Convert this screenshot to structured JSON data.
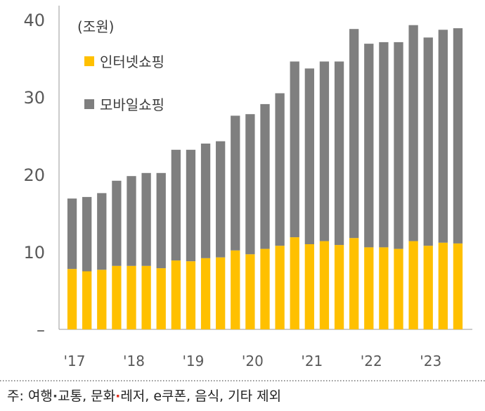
{
  "chart_data": {
    "type": "bar",
    "stacked": true,
    "unit_label": "(조원)",
    "ylim": [
      0,
      40
    ],
    "y_ticks": [
      0,
      10,
      20,
      30,
      40
    ],
    "y_tick_labels": [
      "–",
      "10",
      "20",
      "30",
      "40"
    ],
    "x_tick_labels": [
      "'17",
      "'18",
      "'19",
      "'20",
      "'21",
      "'22",
      "'23"
    ],
    "x_tick_positions": [
      0,
      4,
      8,
      12,
      16,
      20,
      24
    ],
    "legend_position": "top-left",
    "grid": false,
    "categories": [
      "17Q1",
      "17Q2",
      "17Q3",
      "17Q4",
      "18Q1",
      "18Q2",
      "18Q3",
      "18Q4",
      "19Q1",
      "19Q2",
      "19Q3",
      "19Q4",
      "20Q1",
      "20Q2",
      "20Q3",
      "20Q4",
      "21Q1",
      "21Q2",
      "21Q3",
      "21Q4",
      "22Q1",
      "22Q2",
      "22Q3",
      "22Q4",
      "23Q1",
      "23Q2",
      "23Q3"
    ],
    "series": [
      {
        "name": "인터넷쇼핑",
        "color": "#FFC000",
        "values": [
          7.8,
          7.5,
          7.7,
          8.2,
          8.2,
          8.2,
          7.9,
          8.9,
          8.8,
          9.2,
          9.3,
          10.2,
          9.7,
          10.4,
          10.8,
          11.9,
          11.0,
          11.4,
          10.9,
          11.8,
          10.6,
          10.6,
          10.4,
          11.4,
          10.8,
          11.2,
          11.1
        ]
      },
      {
        "name": "모바일쇼핑",
        "color": "#7F7F7F",
        "values": [
          9.1,
          9.6,
          9.9,
          11.0,
          11.6,
          12.0,
          12.3,
          14.3,
          14.4,
          14.8,
          15.0,
          17.4,
          18.1,
          18.7,
          19.7,
          22.7,
          22.7,
          23.2,
          23.7,
          27.0,
          26.3,
          26.5,
          26.7,
          27.9,
          26.9,
          27.5,
          27.8
        ]
      }
    ]
  },
  "footnote": {
    "prefix": "주: 여행",
    "dot1": "·",
    "middle": "교통, 문화",
    "dot2": "·",
    "suffix": "레저, e쿠폰, 음식, 기타 제외"
  }
}
